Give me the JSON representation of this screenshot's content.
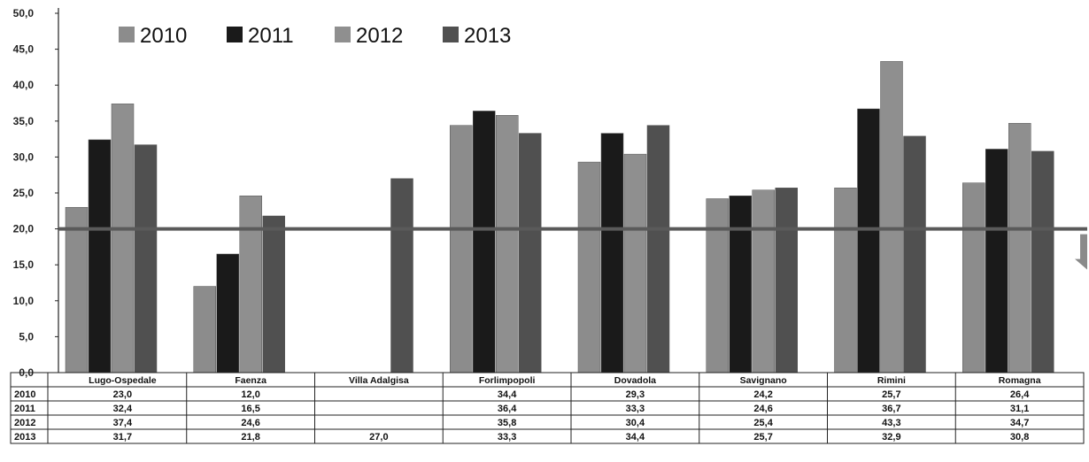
{
  "chart_data": {
    "type": "bar",
    "categories": [
      "Lugo-Ospedale",
      "Faenza",
      "Villa Adalgisa",
      "Forlimpopoli",
      "Dovadola",
      "Savignano",
      "Rimini",
      "Romagna"
    ],
    "series": [
      {
        "name": "2010",
        "color": "#8c8c8c",
        "values": [
          23.0,
          12.0,
          null,
          34.4,
          29.3,
          24.2,
          25.7,
          26.4
        ],
        "labels": [
          "23,0",
          "12,0",
          "",
          "34,4",
          "29,3",
          "24,2",
          "25,7",
          "26,4"
        ]
      },
      {
        "name": "2011",
        "color": "#1a1a1a",
        "values": [
          32.4,
          16.5,
          null,
          36.4,
          33.3,
          24.6,
          36.7,
          31.1
        ],
        "labels": [
          "32,4",
          "16,5",
          "",
          "36,4",
          "33,3",
          "24,6",
          "36,7",
          "31,1"
        ]
      },
      {
        "name": "2012",
        "color": "#8f8f8f",
        "values": [
          37.4,
          24.6,
          null,
          35.8,
          30.4,
          25.4,
          43.3,
          34.7
        ],
        "labels": [
          "37,4",
          "24,6",
          "",
          "35,8",
          "30,4",
          "25,4",
          "43,3",
          "34,7"
        ]
      },
      {
        "name": "2013",
        "color": "#505050",
        "values": [
          31.7,
          21.8,
          27.0,
          33.3,
          34.4,
          25.7,
          32.9,
          30.8
        ],
        "labels": [
          "31,7",
          "21,8",
          "27,0",
          "33,3",
          "34,4",
          "25,7",
          "32,9",
          "30,8"
        ]
      }
    ],
    "y_ticks": [
      "0,0",
      "5,0",
      "10,0",
      "15,0",
      "20,0",
      "25,0",
      "30,0",
      "35,0",
      "40,0",
      "45,0",
      "50,0"
    ],
    "ylim": [
      0,
      50
    ],
    "reference_line": 20.0,
    "legend_position": "top-left",
    "grid": false,
    "title": "",
    "xlabel": "",
    "ylabel": ""
  }
}
